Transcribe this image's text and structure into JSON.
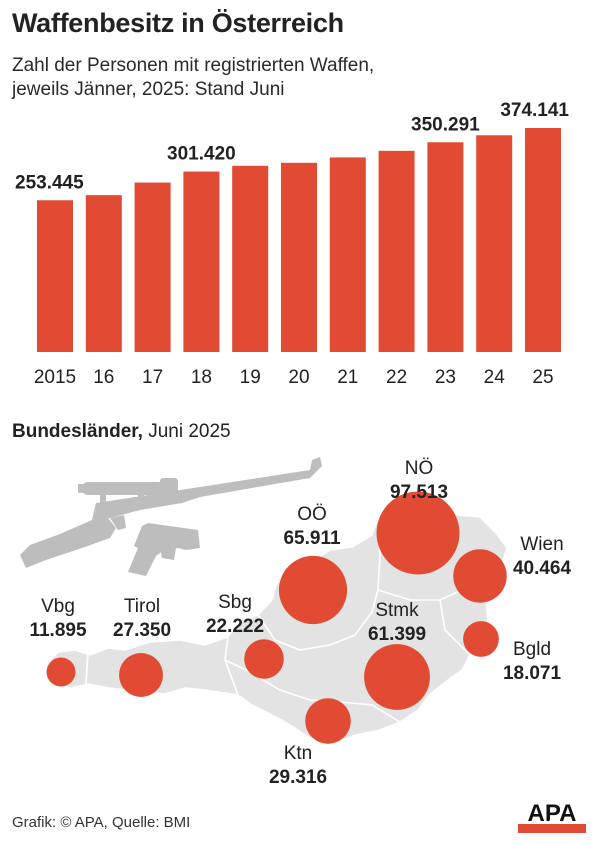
{
  "title": "Waffenbesitz in Österreich",
  "subtitle_line1": "Zahl der Personen mit registrierten Waffen,",
  "subtitle_line2": "jeweils Jänner, 2025: Stand Juni",
  "section_bold": "Bundesländer,",
  "section_rest": " Juni 2025",
  "credit": "Grafik: © APA, Quelle: BMI",
  "logo_text": "APA",
  "colors": {
    "accent": "#e14b33",
    "map_fill": "#e3e3e3",
    "map_border": "#ffffff",
    "weapon": "#bdbdbd"
  },
  "icons": [
    "rifle-icon",
    "pistol-icon",
    "austria-map"
  ],
  "chart_data": [
    {
      "type": "bar",
      "categories": [
        "2015",
        "16",
        "17",
        "18",
        "19",
        "20",
        "21",
        "22",
        "23",
        "24",
        "25"
      ],
      "values": [
        253445,
        262000,
        283000,
        301420,
        311000,
        316000,
        325000,
        336000,
        350291,
        362000,
        374141
      ],
      "data_labels": {
        "2015": "253.445",
        "18": "301.420",
        "23": "350.291",
        "25": "374.141"
      },
      "title": "Zahl der Personen mit registrierten Waffen, jeweils Jänner, 2025: Stand Juni",
      "ylim": [
        0,
        380000
      ],
      "grid": false
    },
    {
      "type": "scatter",
      "title": "Bundesländer, Juni 2025",
      "series": [
        {
          "points": [
            {
              "name": "Vbg",
              "label": "11.895",
              "value": 11895
            },
            {
              "name": "Tirol",
              "label": "27.350",
              "value": 27350
            },
            {
              "name": "Sbg",
              "label": "22.222",
              "value": 22222
            },
            {
              "name": "OÖ",
              "label": "65.911",
              "value": 65911
            },
            {
              "name": "NÖ",
              "label": "97.513",
              "value": 97513
            },
            {
              "name": "Wien",
              "label": "40.464",
              "value": 40464
            },
            {
              "name": "Stmk",
              "label": "61.399",
              "value": 61399
            },
            {
              "name": "Bgld",
              "label": "18.071",
              "value": 18071
            },
            {
              "name": "Ktn",
              "label": "29.316",
              "value": 29316
            }
          ]
        }
      ]
    }
  ]
}
